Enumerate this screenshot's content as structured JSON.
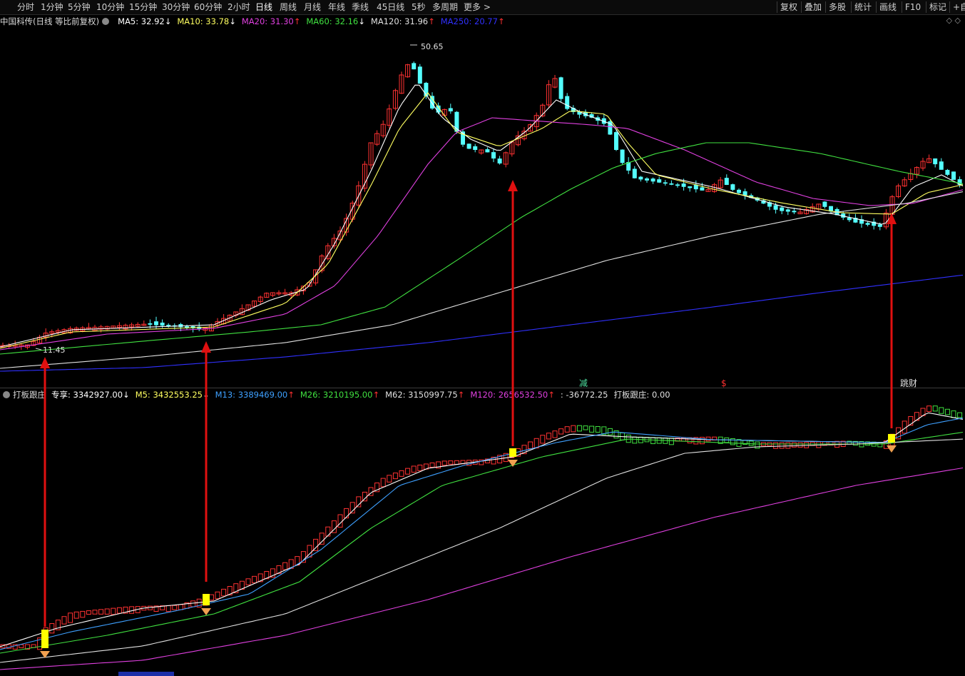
{
  "toolbar": {
    "periods": [
      "分时",
      "1分钟",
      "5分钟",
      "10分钟",
      "15分钟",
      "30分钟",
      "60分钟",
      "2小时",
      "日线",
      "周线",
      "月线",
      "年线",
      "季线",
      "45日线",
      "5秒",
      "多周期",
      "更多 >"
    ],
    "active_period": "日线",
    "right_items": [
      "复权",
      "叠加",
      "多股",
      "统计",
      "画线",
      "F10",
      "标记",
      "+自"
    ]
  },
  "main_panel": {
    "title": "中国科传(日线 等比前复权)",
    "indicators": [
      {
        "label": "MA5: 32.92",
        "arrow": "↓",
        "color": "#ffffff"
      },
      {
        "label": "MA10: 33.78",
        "arrow": "↓",
        "color": "#ffff60"
      },
      {
        "label": "MA20: 31.30",
        "arrow": "↑",
        "color": "#e040e0"
      },
      {
        "label": "MA60: 32.16",
        "arrow": "↓",
        "color": "#40e040"
      },
      {
        "label": "MA120: 31.96",
        "arrow": "↑",
        "color": "#e0e0e0"
      },
      {
        "label": "MA250: 20.77",
        "arrow": "↑",
        "color": "#3030ff"
      }
    ],
    "high_label": "50.65",
    "low_label": "11.45",
    "window_icons": "◇ ◇"
  },
  "sub_panel": {
    "title": "打板跟庄",
    "indicators": [
      {
        "label": "专享: 3342927.00",
        "arrow": "↓",
        "color": "#ffffff"
      },
      {
        "label": "M5: 3432553.25",
        "arrow": "↓",
        "color": "#ffff60"
      },
      {
        "label": "M13: 3389469.00",
        "arrow": "↑",
        "color": "#3ea0ff"
      },
      {
        "label": "M26: 3210195.00",
        "arrow": "↑",
        "color": "#40e040"
      },
      {
        "label": "M62: 3150997.75",
        "arrow": "↑",
        "color": "#e0e0e0"
      },
      {
        "label": "M120: 2656532.50",
        "arrow": "↑",
        "color": "#e040e0"
      },
      {
        "label": ": -36772.25",
        "arrow": "",
        "color": "#e0e0e0"
      },
      {
        "label": "打板跟庄: 0.00",
        "arrow": "",
        "color": "#e0e0e0"
      }
    ],
    "signals": [
      {
        "text": "减",
        "color": "#4fe0a0"
      },
      {
        "text": "$",
        "color": "#ff3030"
      },
      {
        "text": "跳财",
        "color": "#e0e0e0"
      }
    ]
  },
  "colors": {
    "up": "#ff3232",
    "down": "#54ffff",
    "ma5": "#ffffff",
    "ma10": "#ffff60",
    "ma20": "#e040e0",
    "ma60": "#40e040",
    "ma120": "#e0e0e0",
    "ma250": "#3030ff",
    "arrow": "#e01010",
    "signal_block": "#ffff00",
    "signal_diamond": "#f0a050"
  }
}
